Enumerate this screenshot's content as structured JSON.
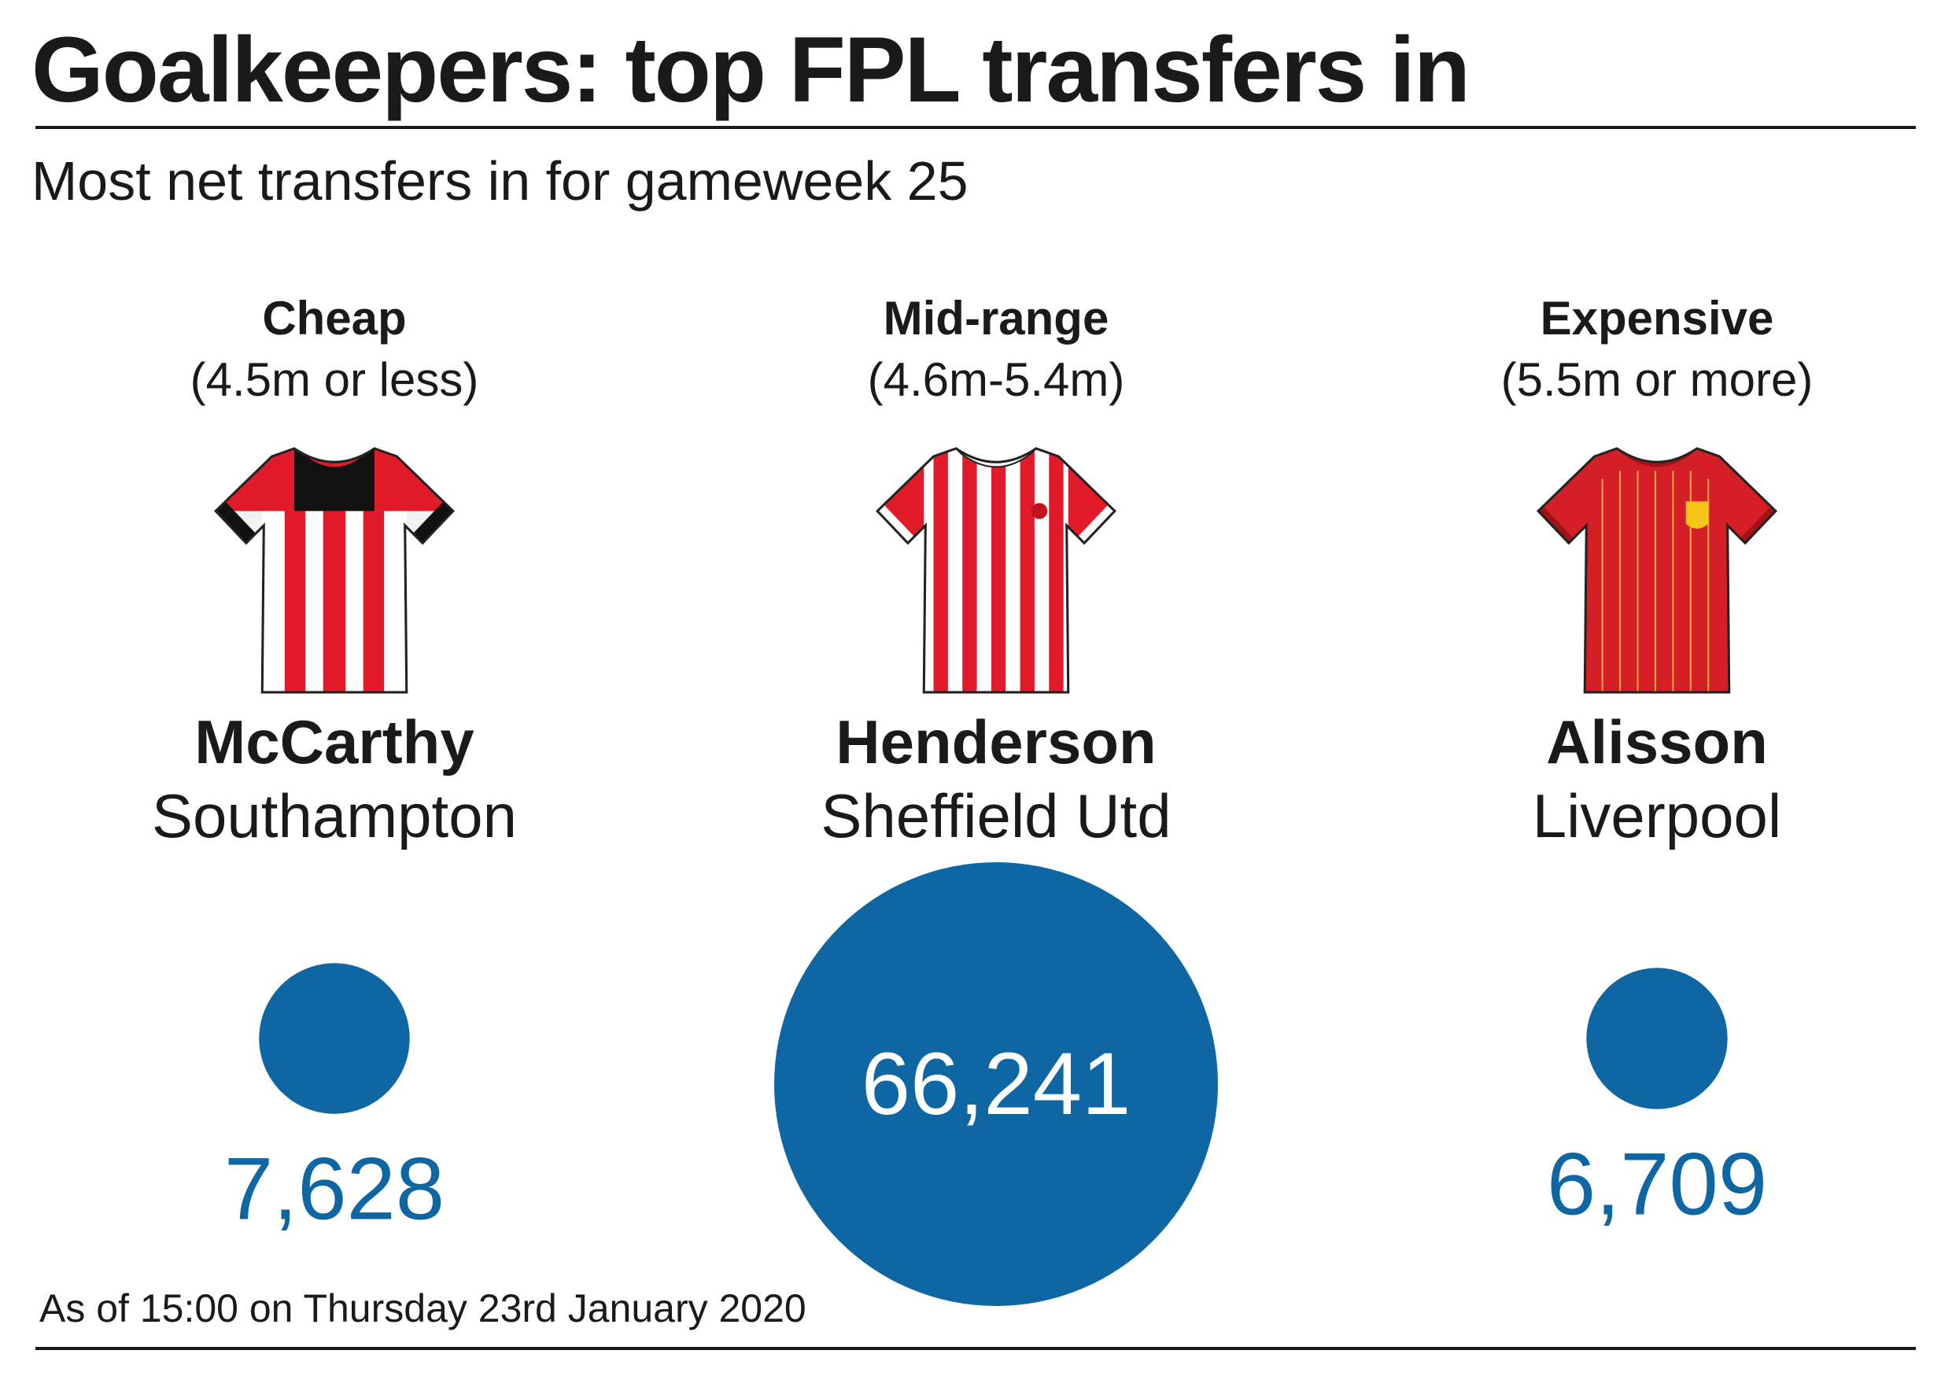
{
  "title": "Goalkeepers: top FPL transfers in",
  "subtitle": "Most net transfers in for gameweek 25",
  "columns": [
    {
      "band": "Cheap",
      "range": "(4.5m or less)",
      "player": "McCarthy",
      "team": "Southampton",
      "shirt_icon": "southampton-shirt-icon",
      "shirt_colors": {
        "stripe": "#e21b2b",
        "base": "#ffffff",
        "yoke": "#111111"
      }
    },
    {
      "band": "Mid-range",
      "range": "(4.6m-5.4m)",
      "player": "Henderson",
      "team": "Sheffield Utd",
      "shirt_icon": "sheffield-utd-shirt-icon",
      "shirt_colors": {
        "stripe": "#e21b2b",
        "base": "#ffffff"
      }
    },
    {
      "band": "Expensive",
      "range": "(5.5m or more)",
      "player": "Alisson",
      "team": "Liverpool",
      "shirt_icon": "liverpool-shirt-icon",
      "shirt_colors": {
        "body": "#d41f26",
        "pinstripe": "#f0a73a",
        "badge": "#f5c518"
      }
    }
  ],
  "chart_data": {
    "type": "bubble",
    "encoding": "bubble area proportional to net transfers in",
    "categories": [
      "McCarthy",
      "Henderson",
      "Alisson"
    ],
    "values": [
      7628,
      66241,
      6709
    ],
    "value_labels": [
      "7,628",
      "66,241",
      "6,709"
    ],
    "colors": {
      "bubble": "#0e67a3",
      "label_outside": "#0e67a3",
      "label_inside": "#ffffff"
    }
  },
  "footnote": "As of 15:00 on Thursday 23rd January 2020"
}
